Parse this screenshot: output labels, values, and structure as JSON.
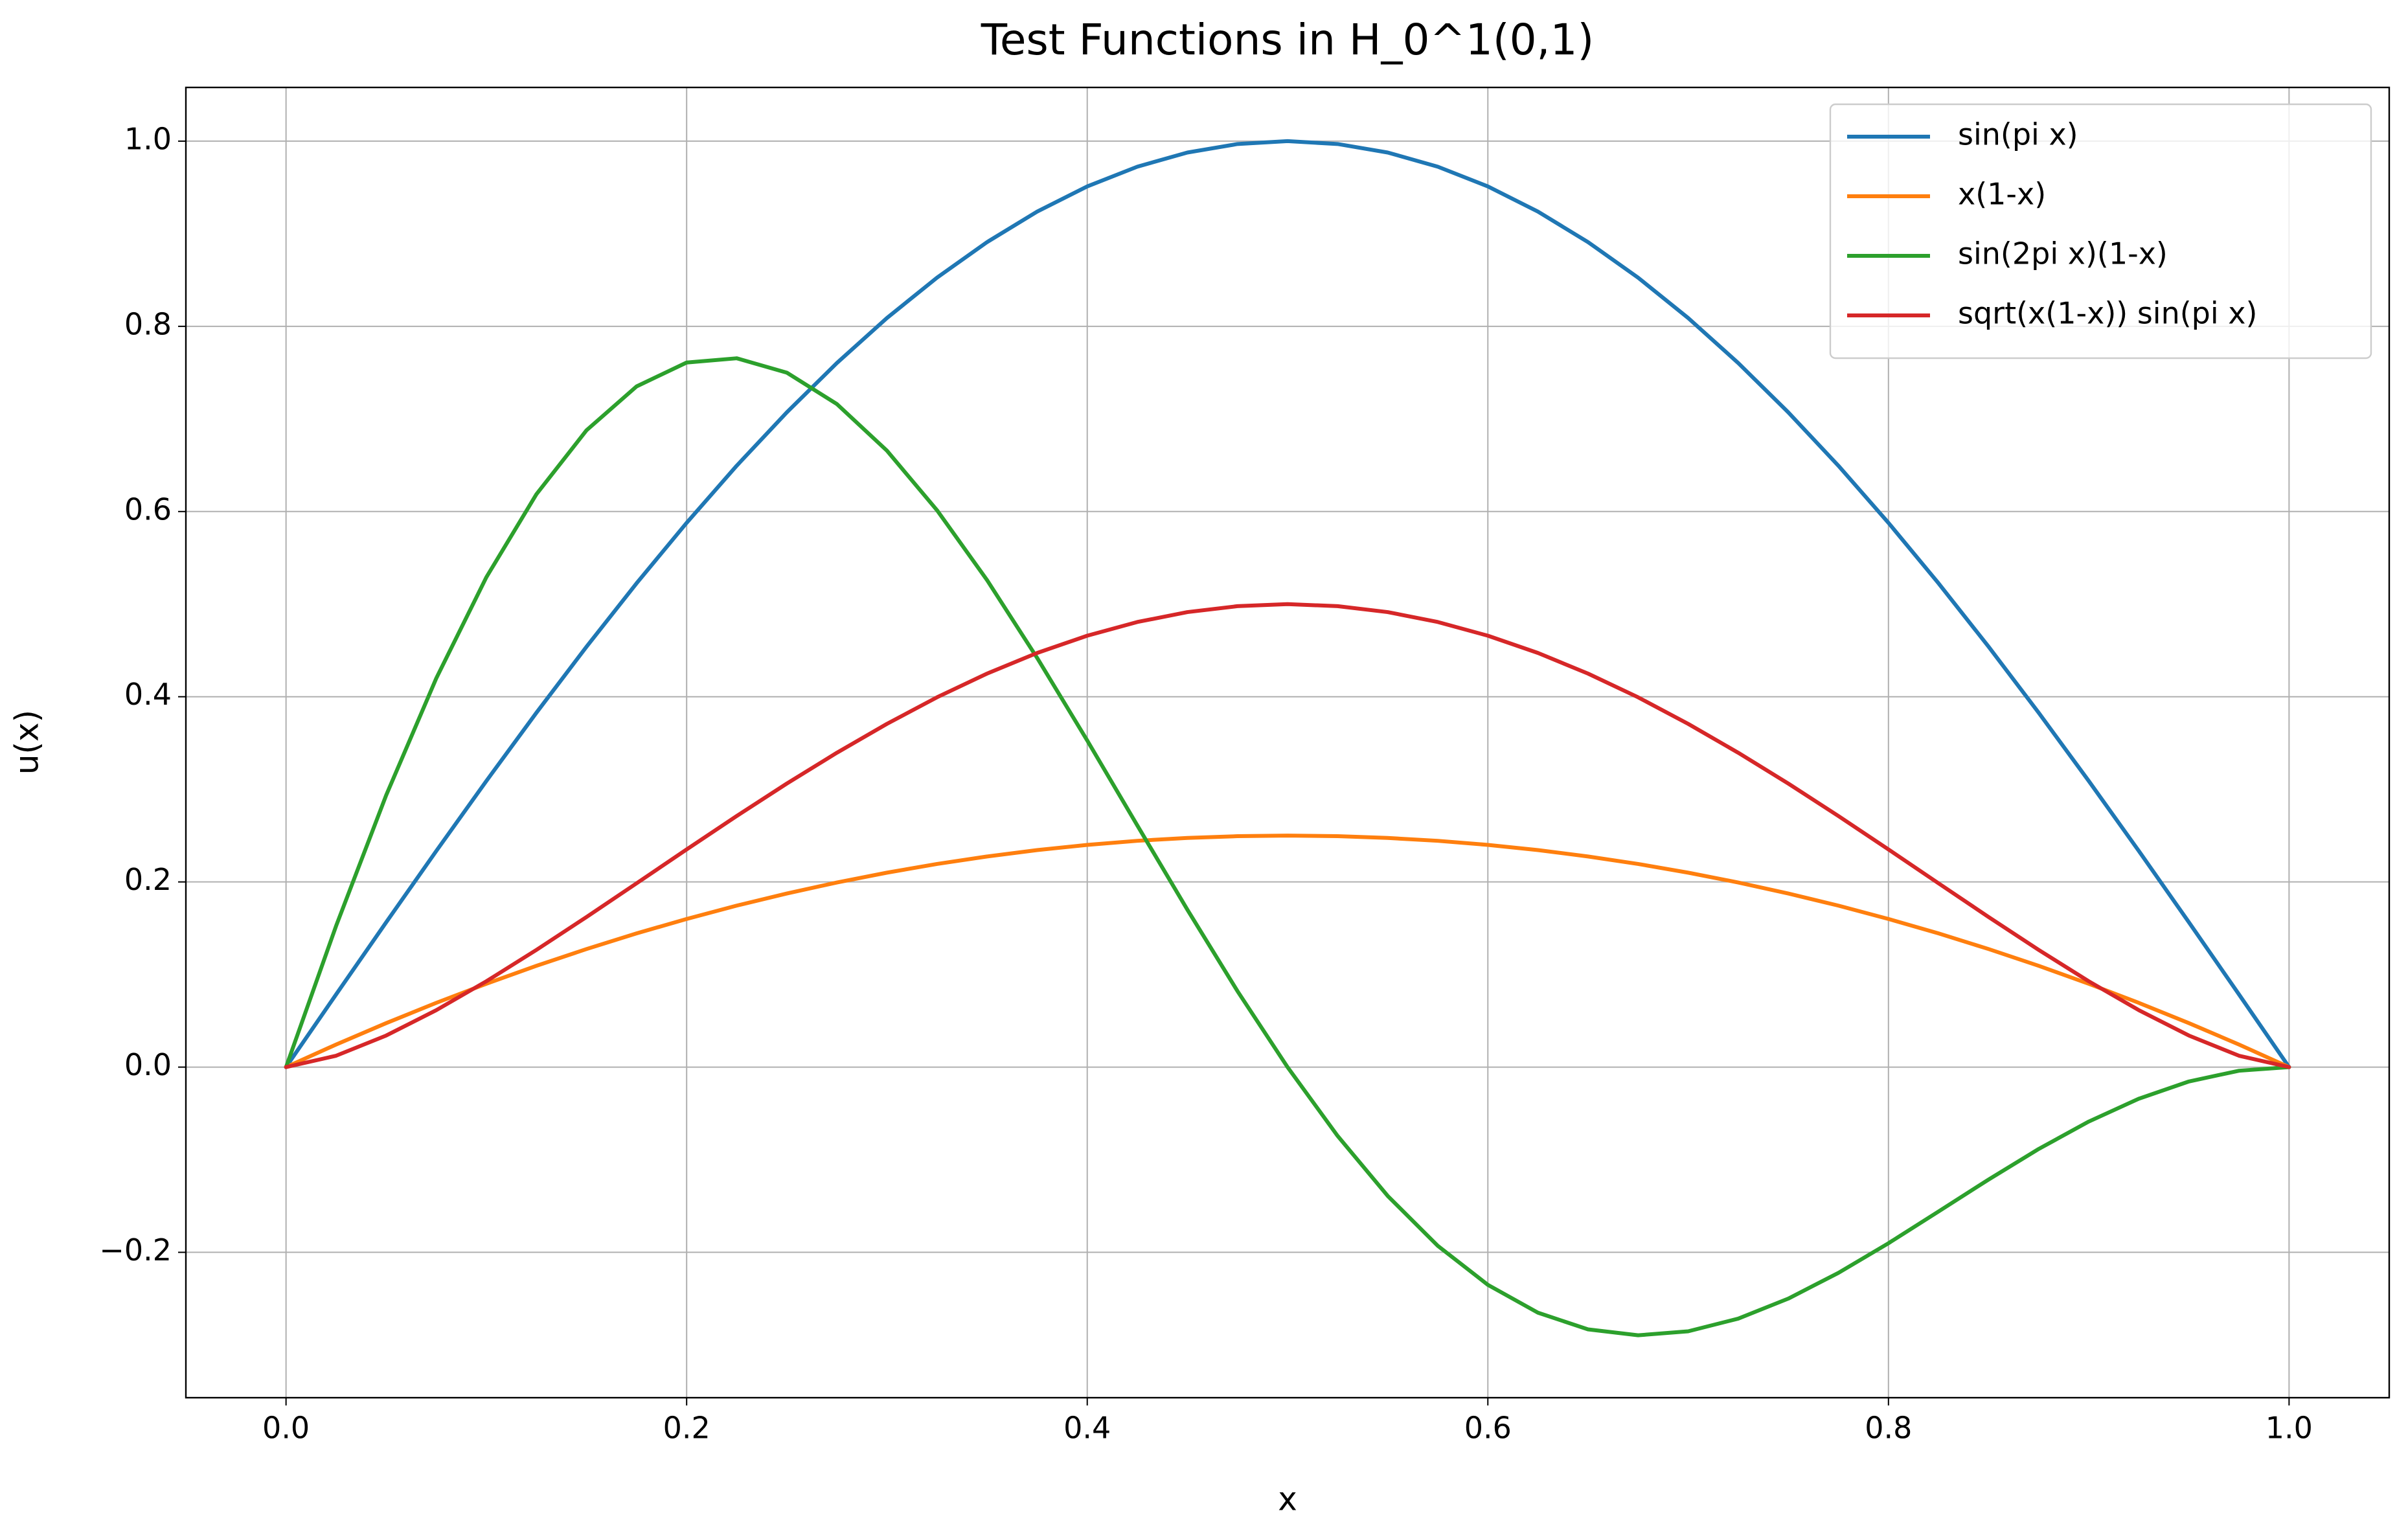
{
  "chart_data": {
    "type": "line",
    "title": "Test Functions in H_0^1(0,1)",
    "xlabel": "x",
    "ylabel": "u(x)",
    "x": [
      0,
      0.025,
      0.05,
      0.075,
      0.1,
      0.125,
      0.15,
      0.175,
      0.2,
      0.225,
      0.25,
      0.275,
      0.3,
      0.325,
      0.35,
      0.375,
      0.4,
      0.425,
      0.45,
      0.475,
      0.5,
      0.525,
      0.55,
      0.575,
      0.6,
      0.625,
      0.65,
      0.675,
      0.7,
      0.725,
      0.75,
      0.775,
      0.8,
      0.825,
      0.85,
      0.875,
      0.9,
      0.925,
      0.95,
      0.975,
      1
    ],
    "series": [
      {
        "name": "sin(pi x)",
        "color": "#1f77b4",
        "values": [
          0,
          0.0785,
          0.1564,
          0.2334,
          0.309,
          0.3827,
          0.454,
          0.5225,
          0.5878,
          0.6495,
          0.7071,
          0.7604,
          0.809,
          0.8526,
          0.891,
          0.9239,
          0.9511,
          0.9724,
          0.9877,
          0.9969,
          1,
          0.9969,
          0.9877,
          0.9724,
          0.9511,
          0.9239,
          0.891,
          0.8526,
          0.809,
          0.7604,
          0.7071,
          0.6495,
          0.5878,
          0.5225,
          0.454,
          0.3827,
          0.309,
          0.2334,
          0.1564,
          0.0785,
          0
        ]
      },
      {
        "name": "x(1-x)",
        "color": "#ff7f0e",
        "values": [
          0,
          0.0244,
          0.0475,
          0.0694,
          0.09,
          0.1094,
          0.1275,
          0.1444,
          0.16,
          0.1744,
          0.1875,
          0.1994,
          0.21,
          0.2194,
          0.2275,
          0.2344,
          0.24,
          0.2444,
          0.2475,
          0.2494,
          0.25,
          0.2494,
          0.2475,
          0.2444,
          0.24,
          0.2344,
          0.2275,
          0.2194,
          0.21,
          0.1994,
          0.1875,
          0.1744,
          0.16,
          0.1444,
          0.1275,
          0.1094,
          0.09,
          0.0694,
          0.0475,
          0.0244,
          0
        ]
      },
      {
        "name": "sin(2pi x)(1-x)",
        "color": "#2ca02c",
        "values": [
          0,
          0.1525,
          0.2936,
          0.4199,
          0.529,
          0.6187,
          0.6877,
          0.7351,
          0.7609,
          0.7655,
          0.75,
          0.7161,
          0.6657,
          0.6014,
          0.5259,
          0.4419,
          0.3527,
          0.261,
          0.17,
          0.0821,
          0,
          -0.0743,
          -0.1391,
          -0.193,
          -0.2351,
          -0.2652,
          -0.2832,
          -0.2896,
          -0.2853,
          -0.2716,
          -0.25,
          -0.2222,
          -0.1902,
          -0.1559,
          -0.1214,
          -0.0884,
          -0.0588,
          -0.0341,
          -0.0155,
          -0.0039,
          0
        ]
      },
      {
        "name": "sqrt(x(1-x)) sin(pi x)",
        "color": "#d62728",
        "values": [
          0,
          0.0123,
          0.0341,
          0.0615,
          0.0927,
          0.1266,
          0.1621,
          0.1985,
          0.2351,
          0.2712,
          0.3062,
          0.3395,
          0.3707,
          0.3994,
          0.425,
          0.4473,
          0.4659,
          0.4807,
          0.4914,
          0.4978,
          0.5,
          0.4978,
          0.4914,
          0.4807,
          0.4659,
          0.4473,
          0.425,
          0.3994,
          0.3707,
          0.3395,
          0.3062,
          0.2712,
          0.2351,
          0.1985,
          0.1621,
          0.1266,
          0.0927,
          0.0615,
          0.0341,
          0.0123,
          0
        ]
      }
    ],
    "xlim": [
      -0.05,
      1.05
    ],
    "ylim": [
      -0.357,
      1.058
    ],
    "xticks": [
      {
        "value": 0,
        "label": "0.0"
      },
      0.2,
      0.4,
      0.6,
      0.8,
      {
        "value": 1,
        "label": "1.0"
      }
    ],
    "yticks": [
      {
        "value": -0.2,
        "label": "−0.2"
      },
      {
        "value": 0,
        "label": "0.0"
      },
      0.2,
      0.4,
      0.6,
      0.8,
      {
        "value": 1,
        "label": "1.0"
      }
    ],
    "grid": true,
    "legend": "upper right"
  }
}
